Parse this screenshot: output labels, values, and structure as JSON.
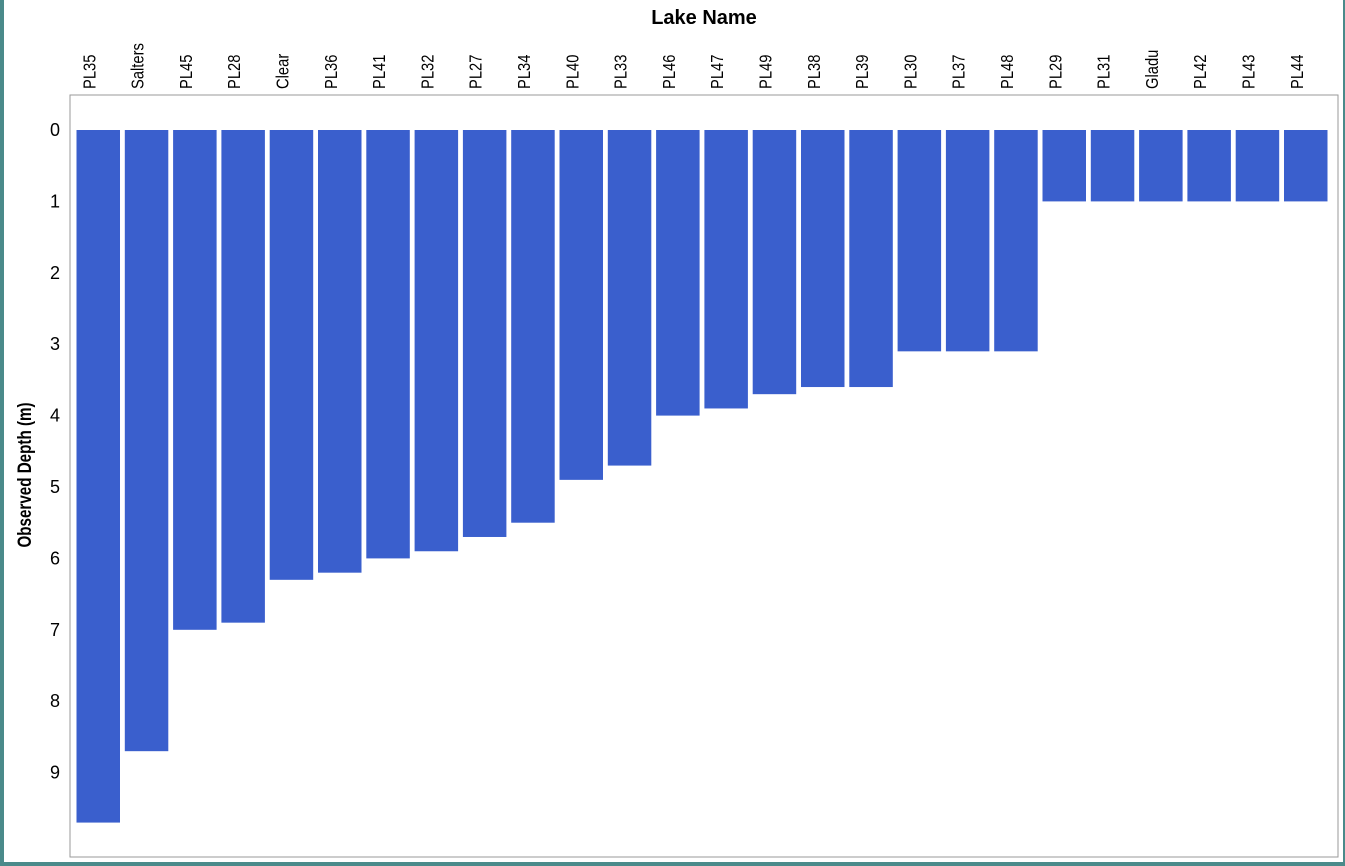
{
  "chart_data": {
    "type": "bar",
    "title": "",
    "xlabel": "Lake Name",
    "ylabel": "Observed Depth (m)",
    "xaxis_position": "top",
    "y_inverted": true,
    "ylim": [
      0,
      10.3
    ],
    "yticks": [
      "0",
      "1",
      "2",
      "3",
      "4",
      "5",
      "6",
      "7",
      "8",
      "9"
    ],
    "grid": false,
    "legend": "none",
    "bar_color": "#3a5fcd",
    "categories": [
      "PL35",
      "Salters",
      "PL45",
      "PL28",
      "Clear",
      "PL36",
      "PL41",
      "PL32",
      "PL27",
      "PL34",
      "PL40",
      "PL33",
      "PL46",
      "PL47",
      "PL49",
      "PL38",
      "PL39",
      "PL30",
      "PL37",
      "PL48",
      "PL29",
      "PL31",
      "Gladu",
      "PL42",
      "PL43",
      "PL44"
    ],
    "values": [
      9.7,
      8.7,
      7.0,
      6.9,
      6.3,
      6.2,
      6.0,
      5.9,
      5.7,
      5.5,
      4.9,
      4.7,
      4.0,
      3.9,
      3.7,
      3.6,
      3.6,
      3.1,
      3.1,
      3.1,
      1.0,
      1.0,
      1.0,
      1.0,
      1.0,
      1.0
    ]
  }
}
